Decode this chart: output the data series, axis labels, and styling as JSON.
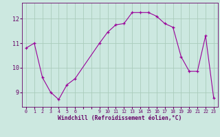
{
  "x": [
    0,
    1,
    2,
    3,
    4,
    5,
    6,
    9,
    10,
    11,
    12,
    13,
    14,
    15,
    16,
    17,
    18,
    19,
    20,
    21,
    22,
    23
  ],
  "y": [
    10.8,
    11.0,
    9.6,
    9.0,
    8.7,
    9.3,
    9.55,
    11.0,
    11.45,
    11.75,
    11.8,
    12.25,
    12.25,
    12.25,
    12.1,
    11.8,
    11.65,
    10.45,
    9.85,
    9.85,
    11.3,
    8.75
  ],
  "line_color": "#990099",
  "bg_color": "#cce8e0",
  "grid_color": "#aaccbb",
  "xlabel": "Windchill (Refroidissement éolien,°C)",
  "xlabel_color": "#660066",
  "tick_color": "#660066",
  "yticks": [
    9,
    10,
    11,
    12
  ],
  "ylim": [
    8.4,
    12.65
  ],
  "xlim": [
    -0.5,
    23.5
  ]
}
